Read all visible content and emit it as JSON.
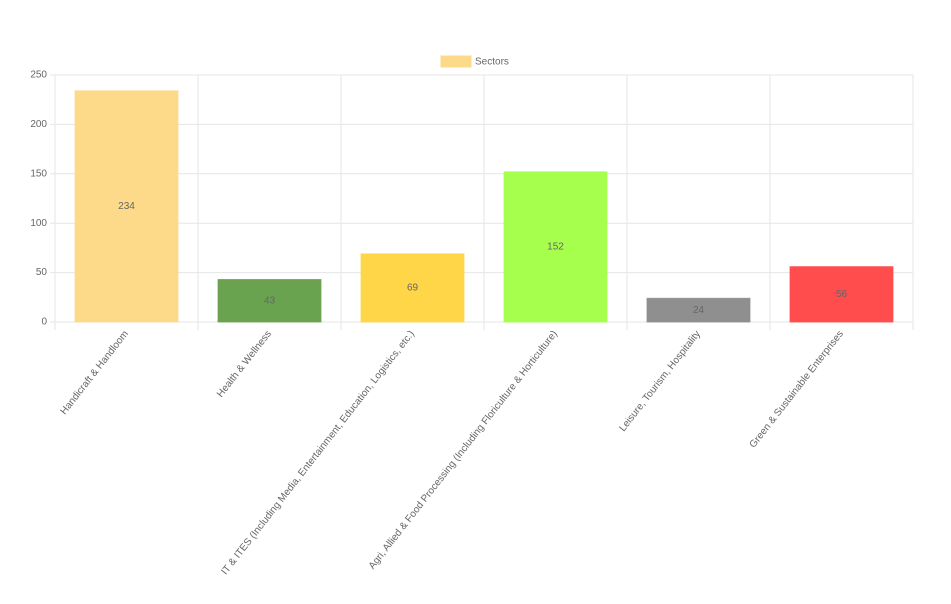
{
  "chart_data": {
    "type": "bar",
    "categories": [
      "Handicraft & Handloom",
      "Health & Wellness",
      "IT & ITES (Including Media, Entertainment, Education, Logistics, etc.)",
      "Agri, Allied & Food Processing (Including Floriculture & Horticulture)",
      "Leisure, Tourism, Hospitality",
      "Green & Sustainable Enterprises"
    ],
    "series": [
      {
        "name": "Sectors",
        "color": "#fdd98a",
        "bar_colors": [
          "#fdd98a",
          "#6aa34f",
          "#ffd648",
          "#a6ff4c",
          "#8f8f8f",
          "#ff4c4c"
        ],
        "values": [
          234,
          43,
          69,
          152,
          24,
          56
        ]
      }
    ],
    "ylim": [
      0,
      250
    ],
    "yticks": [
      0,
      50,
      100,
      150,
      200,
      250
    ],
    "grid": true,
    "legend": "top"
  }
}
